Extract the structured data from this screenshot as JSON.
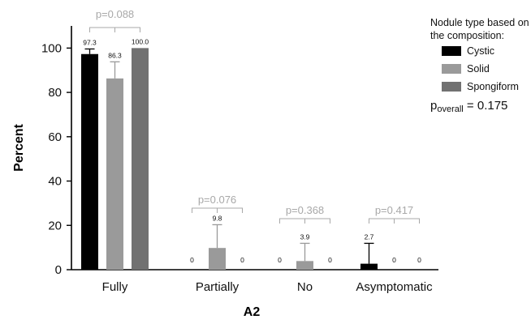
{
  "chart_data": {
    "type": "bar",
    "xlabel": "A2",
    "ylabel": "Percent",
    "ylim": [
      0,
      110
    ],
    "yticks": [
      "0",
      "20",
      "40",
      "60",
      "80",
      "100"
    ],
    "categories": [
      "Fully",
      "Partially",
      "No",
      "Asymptomatic"
    ],
    "series": [
      {
        "name": "Cystic",
        "color": "#000000",
        "values": [
          97.3,
          0,
          0,
          2.7
        ],
        "value_labels": [
          "97.3",
          "0",
          "0",
          "2.7"
        ],
        "error_upper": [
          2.3,
          0,
          0,
          9.2
        ]
      },
      {
        "name": "Solid",
        "color": "#9a9a9a",
        "values": [
          86.3,
          9.8,
          3.9,
          0
        ],
        "value_labels": [
          "86.3",
          "9.8",
          "3.9",
          "0"
        ],
        "error_upper": [
          7.5,
          10.5,
          8.0,
          0
        ]
      },
      {
        "name": "Spongiform",
        "color": "#717171",
        "values": [
          100.0,
          0,
          0,
          0
        ],
        "value_labels": [
          "100.0",
          "0",
          "0",
          "0"
        ],
        "error_upper": [
          0,
          0,
          0,
          0
        ]
      }
    ],
    "pvalues": [
      "p=0.088",
      "p=0.076",
      "p=0.368",
      "p=0.417"
    ],
    "legend": {
      "title": "Nodule type based on the composition:",
      "placement": "top-right"
    },
    "p_overall": {
      "prefix": "p",
      "subscript": "overall",
      "value": "= 0.175"
    },
    "grid": false
  }
}
